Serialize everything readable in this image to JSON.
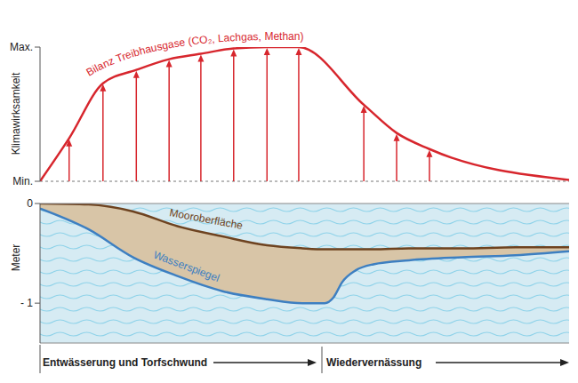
{
  "chart_data": [
    {
      "type": "line",
      "ylabel": "Klimawirksamkeit",
      "x": [
        0,
        5.5,
        11.9,
        18.2,
        24.4,
        30.4,
        36.6,
        42.9,
        48.9,
        61.2,
        67.4,
        73.6,
        100
      ],
      "xlim": [
        0,
        100
      ],
      "ylim": [
        0,
        1
      ],
      "yticks": [
        {
          "value": 0,
          "label": "Min."
        },
        {
          "value": 1,
          "label": "Max."
        }
      ],
      "tick_labels": "y",
      "series": [
        {
          "name": "Bilanz Treibhausgase (CO₂, Lachgas, Methan)",
          "color": "#d7262d",
          "marker": "arrow",
          "values": [
            0,
            0.32,
            0.73,
            0.83,
            0.91,
            0.95,
            0.99,
            1,
            1,
            0.57,
            0.36,
            0.24,
            0.01
          ]
        }
      ]
    },
    {
      "type": "area",
      "ylabel": "Meter",
      "x": [
        0,
        9.2,
        17.6,
        26.1,
        34.5,
        42.9,
        49.6,
        53.8,
        55.5,
        57.1,
        59.7,
        63.0,
        69.7,
        79.8,
        89.9,
        100
      ],
      "xlim": [
        0,
        100
      ],
      "ylim": [
        -1.4,
        0
      ],
      "yticks": [
        0,
        {
          "value": -1,
          "label": "- 1"
        }
      ],
      "tick_labels": "y",
      "series": [
        {
          "name": "Mooroberfläche",
          "color": "#6e4320",
          "values": [
            0,
            -0.01,
            -0.08,
            -0.23,
            -0.33,
            -0.42,
            -0.45,
            -0.46,
            -0.46,
            -0.46,
            -0.46,
            -0.46,
            -0.45,
            -0.45,
            -0.44,
            -0.44
          ]
        },
        {
          "name": "Wasserspiegel",
          "color": "#3d7fc1",
          "values": [
            -0.05,
            -0.26,
            -0.54,
            -0.73,
            -0.88,
            -0.96,
            -1.0,
            -1.0,
            -0.94,
            -0.79,
            -0.67,
            -0.61,
            -0.57,
            -0.54,
            -0.52,
            -0.48
          ]
        }
      ],
      "annotations": [
        "Entwässerung und Torfschwund",
        "Wiedervernässung"
      ]
    }
  ]
}
